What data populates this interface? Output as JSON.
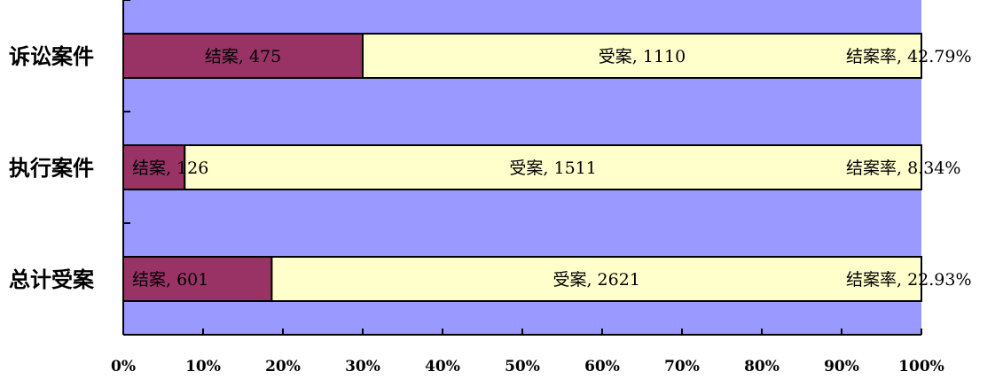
{
  "chart_data": {
    "type": "bar",
    "orientation": "horizontal",
    "stacked": "percent",
    "categories": [
      "诉讼案件",
      "执行案件",
      "总计受案"
    ],
    "series": [
      {
        "name": "结案",
        "values": [
          475,
          126,
          601
        ],
        "labels": [
          "结案, 475",
          "结案, 126",
          "结案, 601"
        ],
        "color": "#993366"
      },
      {
        "name": "受案",
        "values": [
          1110,
          1511,
          2621
        ],
        "labels": [
          "受案, 1110",
          "受案, 1511",
          "受案, 2621"
        ],
        "color": "#ffffcc"
      }
    ],
    "rate_labels": [
      "结案率, 42.79%",
      "结案率, 8.34%",
      "结案率, 22.93%"
    ],
    "shares_closed_pct": [
      30,
      7.7,
      18.6
    ],
    "x_ticks": [
      "0%",
      "10%",
      "20%",
      "30%",
      "40%",
      "50%",
      "60%",
      "70%",
      "80%",
      "90%",
      "100%"
    ],
    "xlim": [
      0,
      100
    ],
    "plot_background": "#9999ff",
    "grid": false,
    "legend": "none"
  }
}
